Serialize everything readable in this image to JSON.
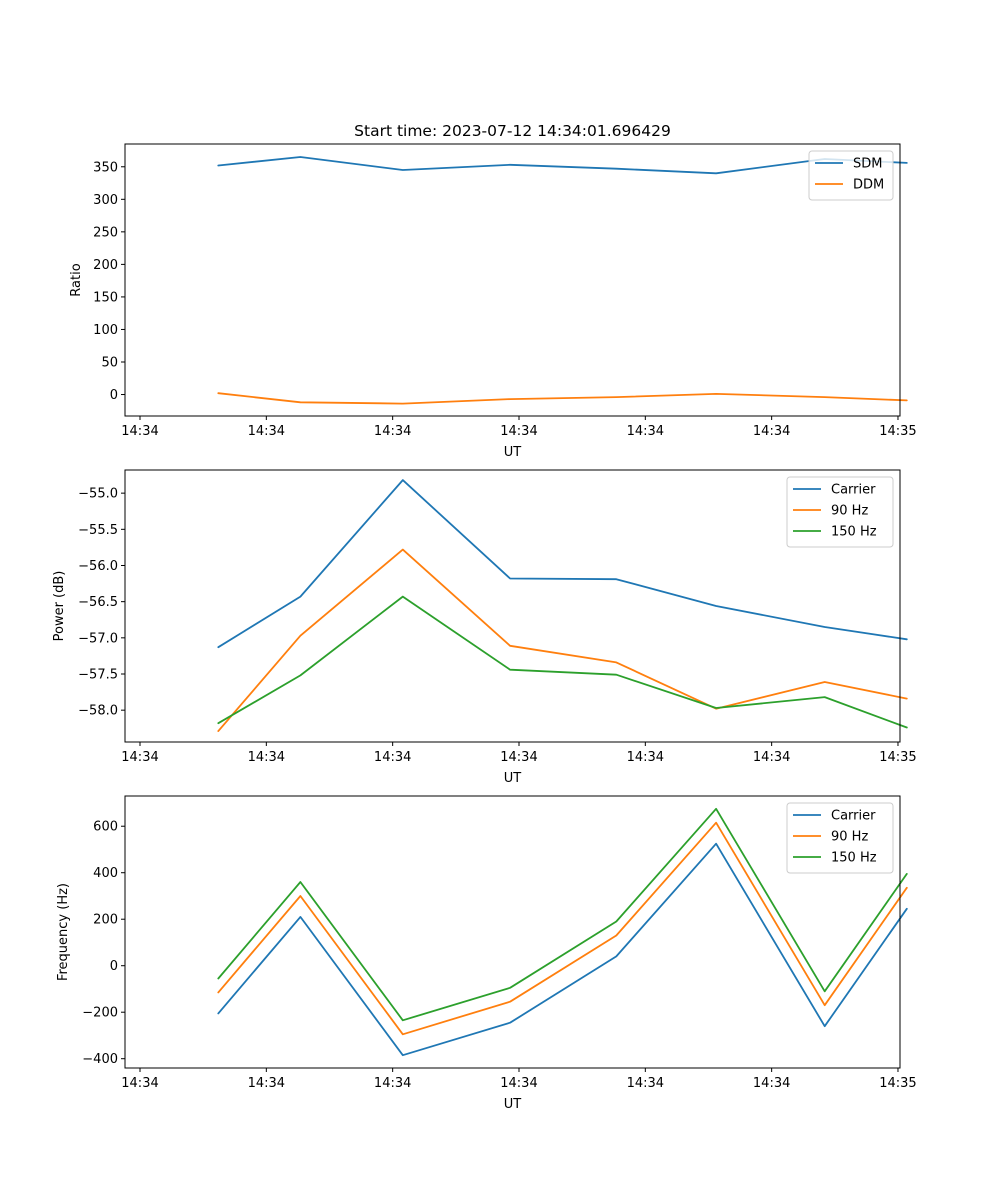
{
  "chart_data": [
    {
      "type": "line",
      "title": "Start time: 2023-07-12 14:34:01.696429",
      "xlabel": "UT",
      "ylabel": "Ratio",
      "x": [
        0.62,
        1.27,
        2.08,
        2.93,
        3.77,
        4.56,
        5.42,
        6.07
      ],
      "xlim": [
        0,
        6
      ],
      "xticks": [
        0,
        1,
        2,
        3,
        4,
        5,
        6
      ],
      "xtick_labels": [
        "14:34",
        "14:34",
        "14:34",
        "14:34",
        "14:34",
        "14:34",
        "14:35"
      ],
      "ylim": [
        -33,
        385
      ],
      "yticks": [
        0,
        50,
        100,
        150,
        200,
        250,
        300,
        350
      ],
      "ytick_labels": [
        "0",
        "50",
        "100",
        "150",
        "200",
        "250",
        "300",
        "350"
      ],
      "legend_position": "top-right",
      "grid": false,
      "series": [
        {
          "name": "SDM",
          "color": "#1f77b4",
          "values": [
            352,
            365,
            345,
            353,
            347,
            340,
            362,
            356
          ]
        },
        {
          "name": "DDM",
          "color": "#ff7f0e",
          "values": [
            2,
            -12,
            -14,
            -7,
            -4,
            1,
            -4,
            -9
          ]
        }
      ]
    },
    {
      "type": "line",
      "title": "",
      "xlabel": "UT",
      "ylabel": "Power (dB)",
      "x": [
        0.62,
        1.27,
        2.08,
        2.93,
        3.77,
        4.56,
        5.42,
        6.07
      ],
      "xlim": [
        0,
        6
      ],
      "xticks": [
        0,
        1,
        2,
        3,
        4,
        5,
        6
      ],
      "xtick_labels": [
        "14:34",
        "14:34",
        "14:34",
        "14:34",
        "14:34",
        "14:34",
        "14:35"
      ],
      "ylim": [
        -58.44,
        -54.68
      ],
      "yticks": [
        -58.0,
        -57.5,
        -57.0,
        -56.5,
        -56.0,
        -55.5,
        -55.0
      ],
      "ytick_labels": [
        "−58.0",
        "−57.5",
        "−57.0",
        "−56.5",
        "−56.0",
        "−55.5",
        "−55.0"
      ],
      "legend_position": "top-right",
      "grid": false,
      "series": [
        {
          "name": "Carrier",
          "color": "#1f77b4",
          "values": [
            -57.13,
            -56.43,
            -54.82,
            -56.18,
            -56.19,
            -56.56,
            -56.85,
            -57.02
          ]
        },
        {
          "name": "90 Hz",
          "color": "#ff7f0e",
          "values": [
            -58.29,
            -56.97,
            -55.78,
            -57.11,
            -57.34,
            -57.98,
            -57.61,
            -57.84
          ]
        },
        {
          "name": "150 Hz",
          "color": "#2ca02c",
          "values": [
            -58.18,
            -57.52,
            -56.43,
            -57.44,
            -57.51,
            -57.97,
            -57.82,
            -58.24
          ]
        }
      ]
    },
    {
      "type": "line",
      "title": "",
      "xlabel": "UT",
      "ylabel": "Frequency (Hz)",
      "x": [
        0.62,
        1.27,
        2.08,
        2.93,
        3.77,
        4.56,
        5.42,
        6.07
      ],
      "xlim": [
        0,
        6
      ],
      "xticks": [
        0,
        1,
        2,
        3,
        4,
        5,
        6
      ],
      "xtick_labels": [
        "14:34",
        "14:34",
        "14:34",
        "14:34",
        "14:34",
        "14:34",
        "14:35"
      ],
      "ylim": [
        -440,
        730
      ],
      "yticks": [
        -400,
        -200,
        0,
        200,
        400,
        600
      ],
      "ytick_labels": [
        "−400",
        "−200",
        "0",
        "200",
        "400",
        "600"
      ],
      "legend_position": "top-right",
      "grid": false,
      "series": [
        {
          "name": "Carrier",
          "color": "#1f77b4",
          "values": [
            -205,
            210,
            -385,
            -245,
            40,
            525,
            -260,
            245
          ]
        },
        {
          "name": "90 Hz",
          "color": "#ff7f0e",
          "values": [
            -115,
            300,
            -295,
            -155,
            130,
            615,
            -170,
            335
          ]
        },
        {
          "name": "150 Hz",
          "color": "#2ca02c",
          "values": [
            -55,
            360,
            -235,
            -95,
            190,
            675,
            -110,
            395
          ]
        }
      ]
    }
  ]
}
